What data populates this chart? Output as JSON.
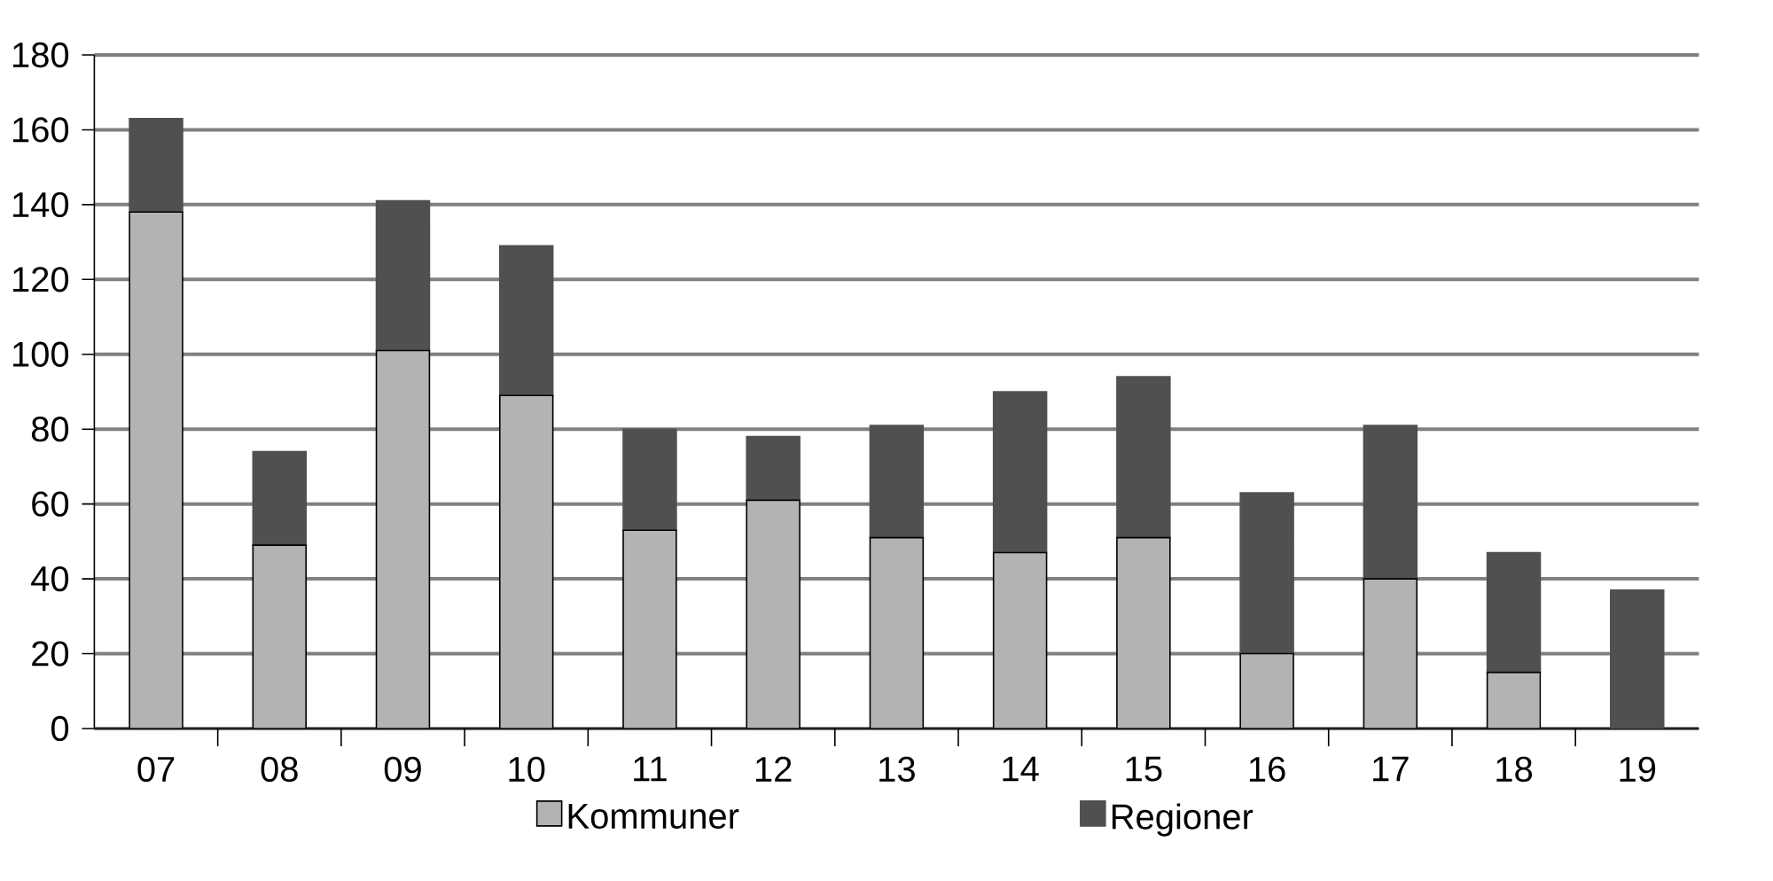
{
  "chart_data": {
    "type": "bar",
    "stacked": true,
    "categories": [
      "07",
      "08",
      "09",
      "10",
      "11",
      "12",
      "13",
      "14",
      "15",
      "16",
      "17",
      "18",
      "19"
    ],
    "series": [
      {
        "name": "Kommuner",
        "color": "#b3b3b3",
        "values": [
          138,
          49,
          101,
          89,
          53,
          61,
          51,
          47,
          51,
          20,
          40,
          15,
          0
        ]
      },
      {
        "name": "Regioner",
        "color": "#505050",
        "values": [
          25,
          25,
          40,
          40,
          27,
          17,
          30,
          43,
          43,
          43,
          41,
          32,
          37
        ]
      }
    ],
    "ylim": [
      0,
      180
    ],
    "yticks": [
      0,
      20,
      40,
      60,
      80,
      100,
      120,
      140,
      160,
      180
    ],
    "grid": "y",
    "legend": "bottom"
  }
}
